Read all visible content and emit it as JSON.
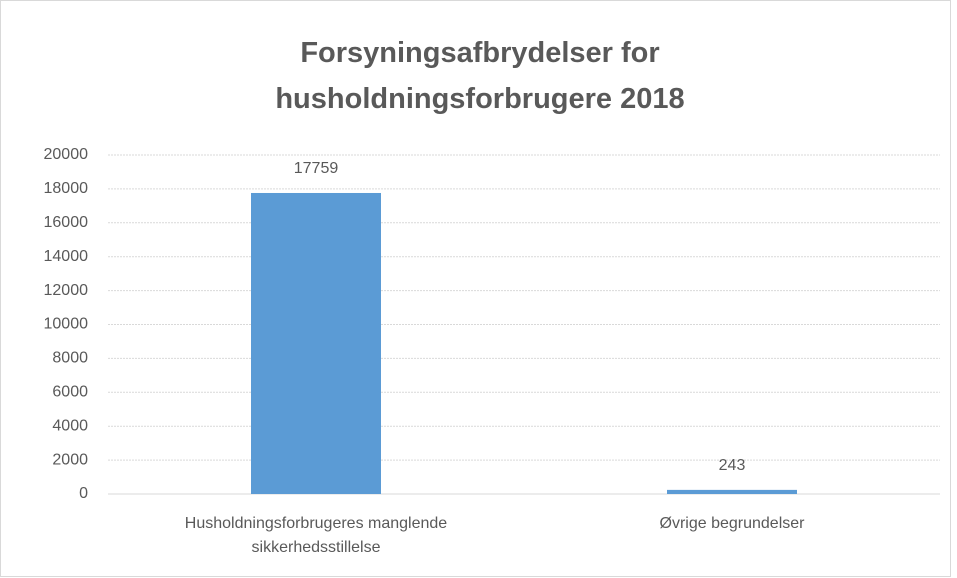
{
  "chart_data": {
    "type": "bar",
    "title": "Forsyningsafbrydelser for husholdningsforbrugere 2018",
    "categories": [
      "Husholdningsforbrugeres manglende sikkerhedsstillelse",
      "Øvrige begrundelser"
    ],
    "values": [
      17759,
      243
    ],
    "color": "#5b9bd5",
    "ylim": [
      0,
      20000
    ],
    "yticks": [
      0,
      2000,
      4000,
      6000,
      8000,
      10000,
      12000,
      14000,
      16000,
      18000,
      20000
    ],
    "grid": true
  }
}
